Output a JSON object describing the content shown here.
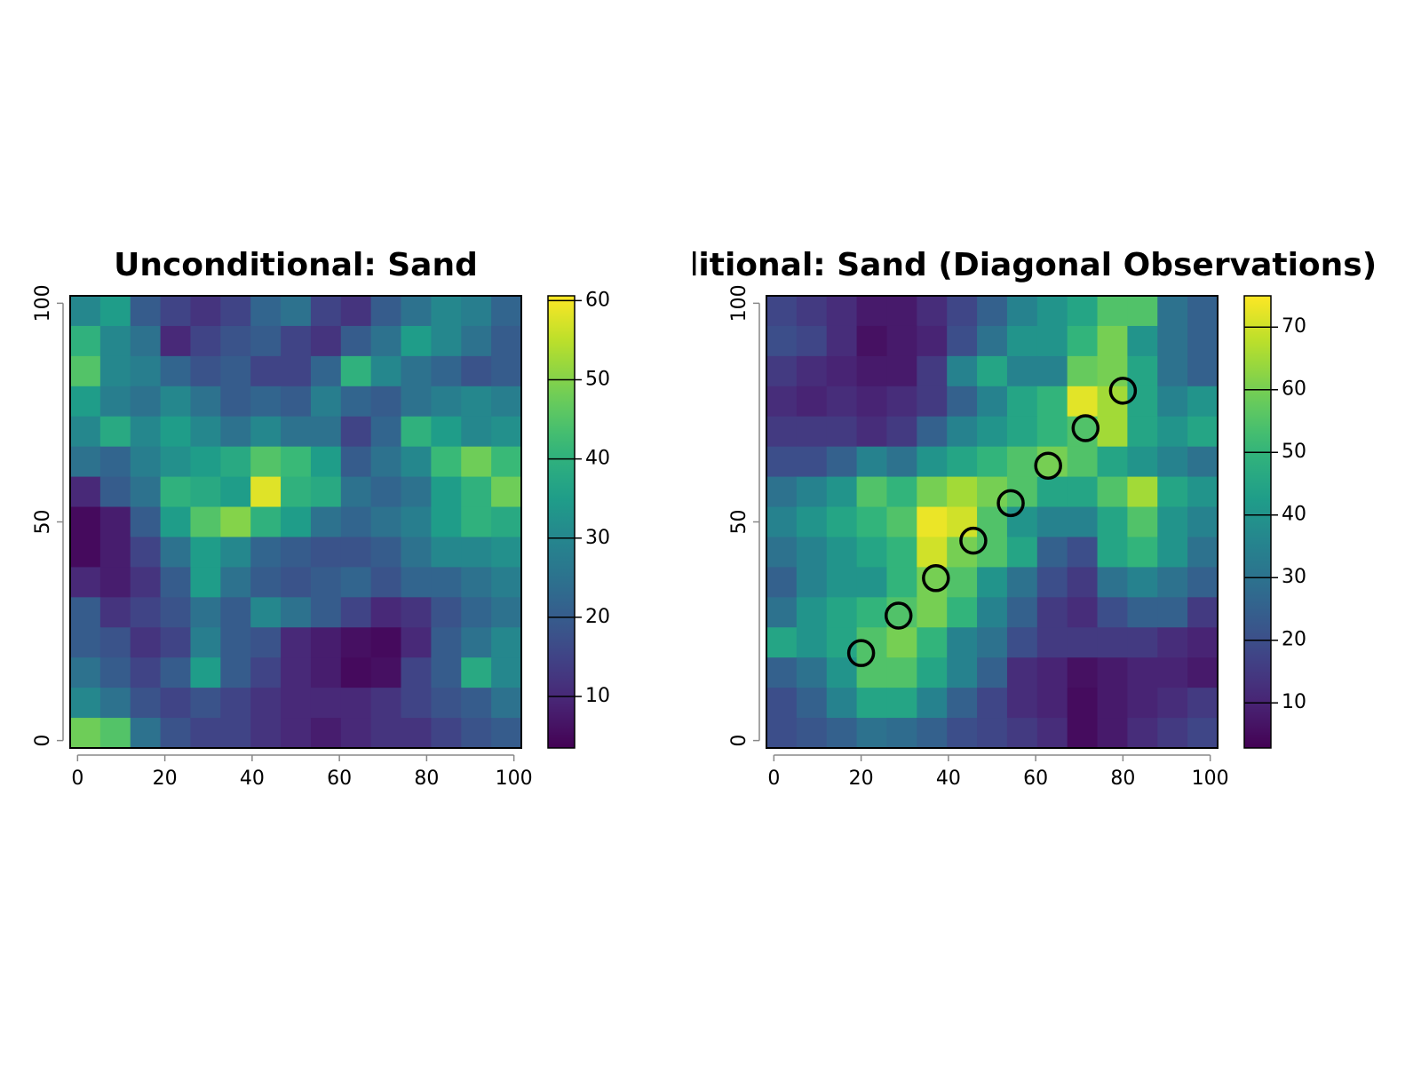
{
  "chart_data": [
    {
      "type": "heatmap",
      "title": "Unconditional: Sand",
      "colormap": "viridis",
      "xlim": [
        -1.7,
        101.7
      ],
      "ylim": [
        -1.7,
        101.7
      ],
      "xticks": [
        0,
        20,
        40,
        60,
        80,
        100
      ],
      "yticks": [
        0,
        50,
        100
      ],
      "zlim": [
        3.5,
        60.6
      ],
      "zticks": [
        10,
        20,
        30,
        40,
        50,
        60
      ],
      "values": [
        [
          30,
          35,
          20,
          15,
          12,
          15,
          22,
          25,
          15,
          12,
          20,
          25,
          30,
          28,
          22
        ],
        [
          40,
          30,
          25,
          10,
          15,
          18,
          20,
          15,
          12,
          20,
          25,
          35,
          30,
          25,
          20
        ],
        [
          45,
          30,
          28,
          22,
          18,
          20,
          15,
          15,
          22,
          40,
          30,
          25,
          22,
          18,
          20
        ],
        [
          35,
          28,
          25,
          30,
          25,
          20,
          22,
          20,
          28,
          22,
          20,
          25,
          28,
          30,
          28
        ],
        [
          30,
          38,
          30,
          35,
          30,
          25,
          30,
          25,
          25,
          15,
          22,
          40,
          35,
          30,
          32
        ],
        [
          25,
          22,
          28,
          32,
          35,
          38,
          45,
          42,
          35,
          20,
          25,
          30,
          42,
          48,
          42
        ],
        [
          10,
          20,
          25,
          40,
          38,
          35,
          58,
          40,
          38,
          25,
          22,
          25,
          35,
          40,
          48
        ],
        [
          5,
          8,
          20,
          35,
          45,
          50,
          40,
          35,
          25,
          22,
          25,
          28,
          35,
          40,
          38
        ],
        [
          5,
          8,
          15,
          25,
          35,
          30,
          22,
          20,
          18,
          18,
          20,
          25,
          30,
          30,
          32
        ],
        [
          10,
          8,
          12,
          20,
          35,
          25,
          20,
          18,
          20,
          22,
          18,
          22,
          22,
          25,
          28
        ],
        [
          20,
          12,
          15,
          18,
          25,
          20,
          30,
          25,
          20,
          15,
          10,
          12,
          18,
          22,
          25
        ],
        [
          20,
          18,
          12,
          15,
          28,
          20,
          18,
          10,
          8,
          6,
          5,
          10,
          20,
          25,
          30
        ],
        [
          25,
          20,
          15,
          20,
          35,
          20,
          15,
          10,
          8,
          5,
          6,
          15,
          20,
          38,
          30
        ],
        [
          30,
          25,
          18,
          15,
          18,
          15,
          12,
          10,
          10,
          10,
          12,
          15,
          18,
          20,
          25
        ],
        [
          48,
          45,
          25,
          18,
          15,
          15,
          12,
          10,
          8,
          10,
          12,
          12,
          15,
          18,
          20
        ]
      ]
    },
    {
      "type": "heatmap",
      "title": "Conditional: Sand (Diagonal Observations)",
      "colormap": "viridis",
      "xlim": [
        -1.7,
        101.7
      ],
      "ylim": [
        -1.7,
        101.7
      ],
      "xticks": [
        0,
        20,
        40,
        60,
        80,
        100
      ],
      "yticks": [
        0,
        50,
        100
      ],
      "zlim": [
        2.8,
        75
      ],
      "zticks": [
        10,
        20,
        30,
        40,
        50,
        60,
        70
      ],
      "values": [
        [
          18,
          15,
          12,
          8,
          8,
          12,
          18,
          25,
          35,
          40,
          45,
          55,
          55,
          30,
          25
        ],
        [
          20,
          18,
          12,
          6,
          8,
          10,
          20,
          30,
          40,
          40,
          50,
          60,
          40,
          30,
          25
        ],
        [
          15,
          12,
          10,
          8,
          8,
          15,
          35,
          45,
          35,
          35,
          58,
          60,
          45,
          30,
          25
        ],
        [
          12,
          10,
          12,
          10,
          12,
          15,
          25,
          35,
          45,
          50,
          72,
          65,
          45,
          35,
          40
        ],
        [
          15,
          15,
          15,
          12,
          15,
          25,
          35,
          40,
          45,
          50,
          55,
          65,
          45,
          40,
          45
        ],
        [
          20,
          20,
          25,
          35,
          30,
          40,
          45,
          50,
          55,
          60,
          55,
          45,
          40,
          35,
          30
        ],
        [
          30,
          35,
          40,
          55,
          50,
          60,
          65,
          60,
          55,
          45,
          45,
          55,
          65,
          45,
          40
        ],
        [
          35,
          40,
          45,
          50,
          55,
          73,
          70,
          55,
          40,
          35,
          35,
          45,
          55,
          40,
          35
        ],
        [
          30,
          35,
          40,
          45,
          50,
          70,
          60,
          55,
          45,
          25,
          20,
          45,
          50,
          40,
          30
        ],
        [
          25,
          35,
          40,
          40,
          50,
          60,
          55,
          40,
          30,
          20,
          15,
          30,
          35,
          30,
          25
        ],
        [
          30,
          40,
          45,
          50,
          55,
          60,
          50,
          35,
          25,
          15,
          12,
          20,
          25,
          25,
          15
        ],
        [
          45,
          40,
          45,
          55,
          60,
          50,
          35,
          30,
          20,
          15,
          15,
          15,
          15,
          12,
          10
        ],
        [
          25,
          30,
          40,
          55,
          55,
          45,
          35,
          25,
          12,
          10,
          6,
          8,
          10,
          10,
          8
        ],
        [
          20,
          25,
          35,
          45,
          45,
          35,
          25,
          18,
          12,
          10,
          5,
          8,
          10,
          12,
          15
        ],
        [
          20,
          22,
          25,
          30,
          28,
          25,
          20,
          18,
          15,
          12,
          5,
          8,
          12,
          15,
          18
        ]
      ],
      "points": {
        "x": [
          20,
          28.57,
          37.14,
          45.71,
          54.29,
          62.86,
          71.43,
          80
        ],
        "y": [
          20,
          28.57,
          37.14,
          45.71,
          54.29,
          62.86,
          71.43,
          80
        ]
      }
    }
  ]
}
